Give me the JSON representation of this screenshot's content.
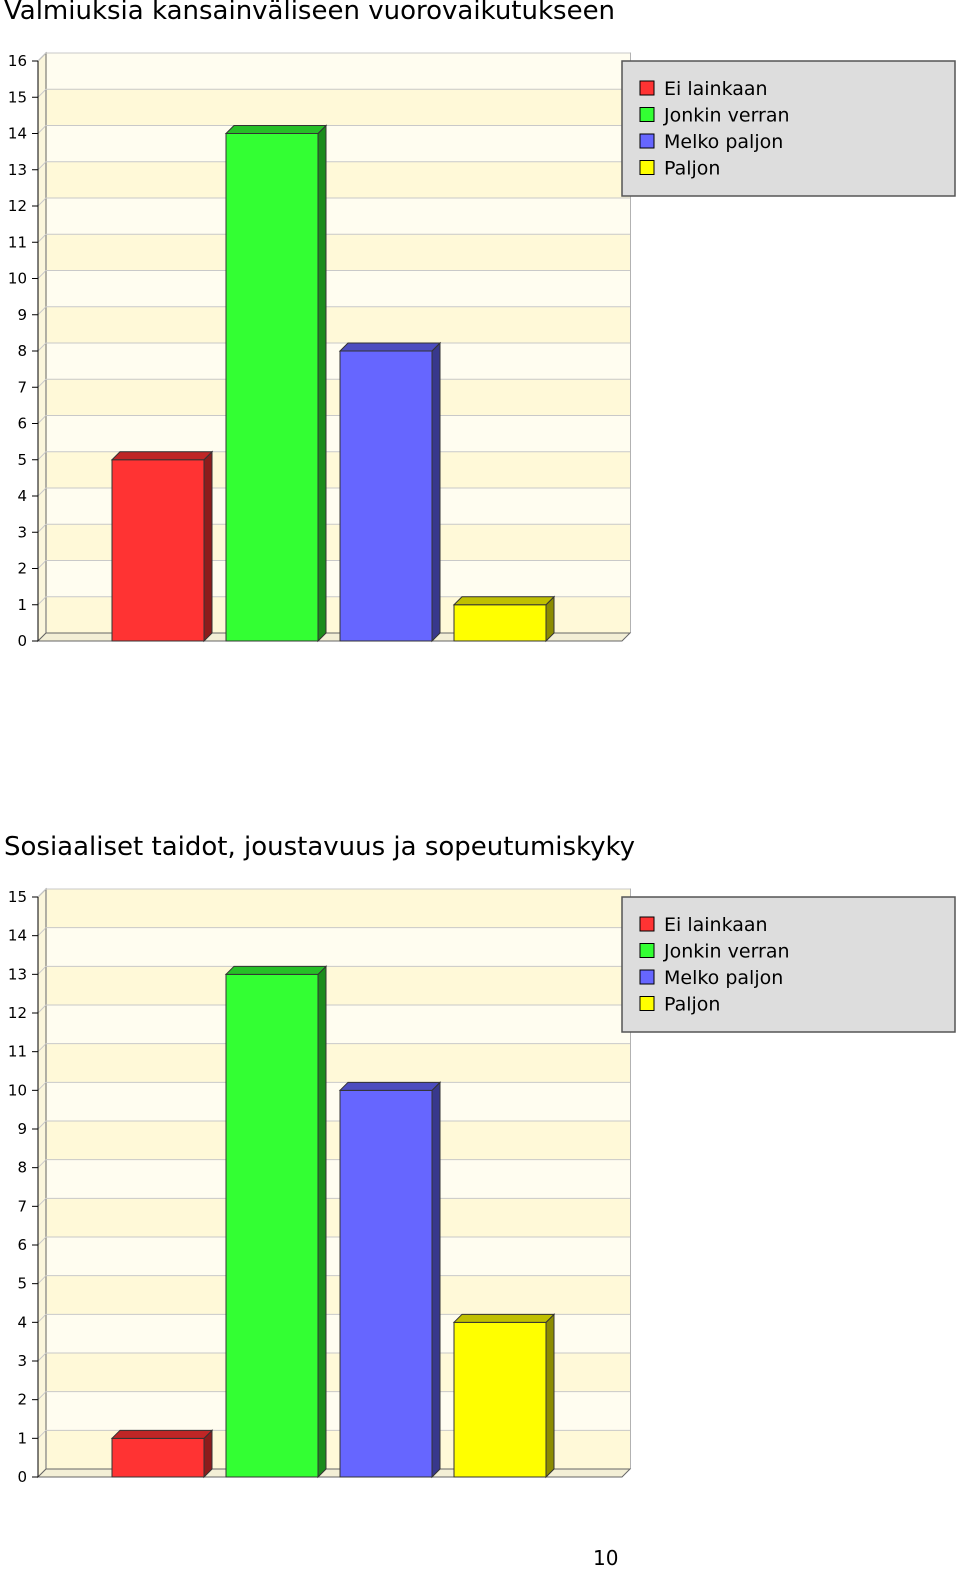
{
  "chart_data": [
    {
      "type": "bar",
      "title": "Valmiuksia kansainväliseen vuorovaikutukseen",
      "categories": [
        "Ei lainkaan",
        "Jonkin verran",
        "Melko paljon",
        "Paljon"
      ],
      "values": [
        5,
        14,
        8,
        1
      ],
      "colors": [
        "#ff3333",
        "#33ff33",
        "#6666ff",
        "#ffff00"
      ],
      "ylim": [
        0,
        16
      ],
      "yticks": [
        "0",
        "1",
        "2",
        "3",
        "4",
        "5",
        "6",
        "7",
        "8",
        "9",
        "10",
        "11",
        "12",
        "13",
        "14",
        "15",
        "16"
      ],
      "legend": [
        "Ei lainkaan",
        "Jonkin verran",
        "Melko paljon",
        "Paljon"
      ],
      "legend_position": "top-right",
      "grid": true,
      "style": "3d"
    },
    {
      "type": "bar",
      "title": "Sosiaaliset taidot, joustavuus ja sopeutumiskyky",
      "categories": [
        "Ei lainkaan",
        "Jonkin verran",
        "Melko paljon",
        "Paljon"
      ],
      "values": [
        1,
        13,
        10,
        4
      ],
      "colors": [
        "#ff3333",
        "#33ff33",
        "#6666ff",
        "#ffff00"
      ],
      "ylim": [
        0,
        15
      ],
      "yticks": [
        "0",
        "1",
        "2",
        "3",
        "4",
        "5",
        "6",
        "7",
        "8",
        "9",
        "10",
        "11",
        "12",
        "13",
        "14",
        "15"
      ],
      "legend": [
        "Ei lainkaan",
        "Jonkin verran",
        "Melko paljon",
        "Paljon"
      ],
      "legend_position": "top-right",
      "grid": true,
      "style": "3d"
    }
  ],
  "page_number": "10"
}
